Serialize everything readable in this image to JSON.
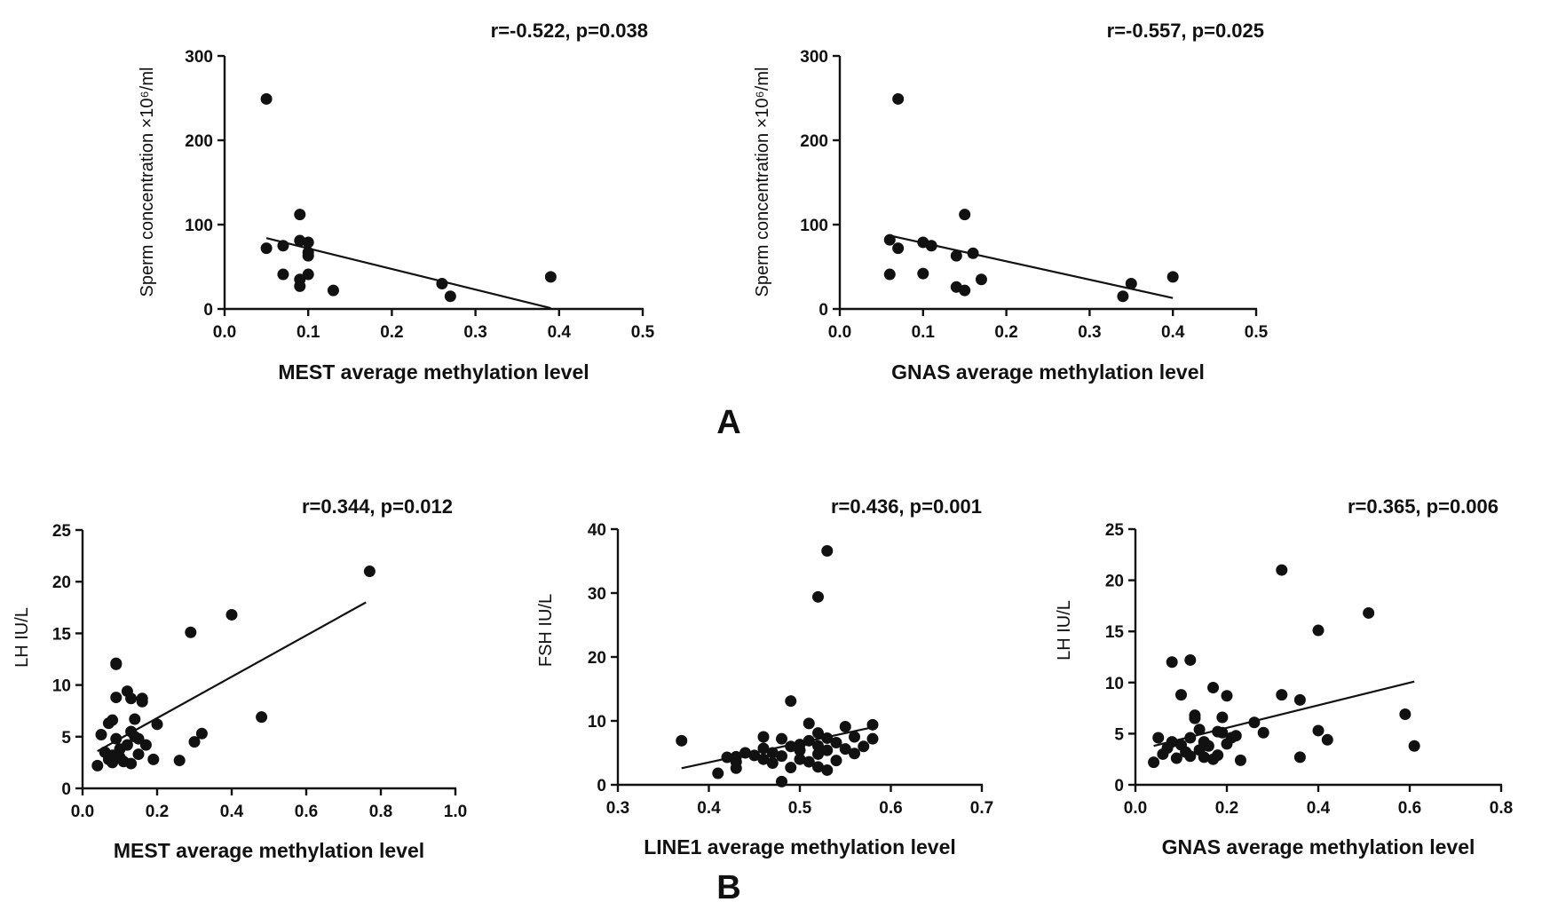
{
  "figure": {
    "panel_labels": [
      "A",
      "B"
    ]
  },
  "chart_data": [
    {
      "id": "A1",
      "type": "scatter",
      "title": "r=-0.522, p=0.038",
      "xlabel": "MEST average methylation level",
      "ylabel": "Sperm concentration  ×10⁶/ml",
      "xlim": [
        0.0,
        0.5
      ],
      "ylim": [
        0,
        300
      ],
      "xticks": [
        0.0,
        0.1,
        0.2,
        0.3,
        0.4,
        0.5
      ],
      "xtick_labels": [
        "0.0",
        "0.1",
        "0.2",
        "0.3",
        "0.4",
        "0.5"
      ],
      "yticks": [
        0,
        100,
        200,
        300
      ],
      "ytick_labels": [
        "0",
        "100",
        "200",
        "300"
      ],
      "points": [
        [
          0.05,
          249
        ],
        [
          0.05,
          72
        ],
        [
          0.07,
          75
        ],
        [
          0.07,
          41
        ],
        [
          0.09,
          112
        ],
        [
          0.09,
          81
        ],
        [
          0.09,
          35
        ],
        [
          0.09,
          27
        ],
        [
          0.1,
          79
        ],
        [
          0.1,
          67
        ],
        [
          0.1,
          63
        ],
        [
          0.1,
          41
        ],
        [
          0.13,
          22
        ],
        [
          0.26,
          30
        ],
        [
          0.27,
          15
        ],
        [
          0.39,
          38
        ]
      ],
      "fit_line": [
        [
          0.05,
          84
        ],
        [
          0.39,
          1
        ]
      ]
    },
    {
      "id": "A2",
      "type": "scatter",
      "title": "r=-0.557, p=0.025",
      "xlabel": "GNAS average methylation level",
      "ylabel": "Sperm concentration  ×10⁶/ml",
      "xlim": [
        0.0,
        0.5
      ],
      "ylim": [
        0,
        300
      ],
      "xticks": [
        0.0,
        0.1,
        0.2,
        0.3,
        0.4,
        0.5
      ],
      "xtick_labels": [
        "0.0",
        "0.1",
        "0.2",
        "0.3",
        "0.4",
        "0.5"
      ],
      "yticks": [
        0,
        100,
        200,
        300
      ],
      "ytick_labels": [
        "0",
        "100",
        "200",
        "300"
      ],
      "points": [
        [
          0.07,
          249
        ],
        [
          0.06,
          82
        ],
        [
          0.07,
          72
        ],
        [
          0.06,
          41
        ],
        [
          0.1,
          79
        ],
        [
          0.11,
          75
        ],
        [
          0.1,
          42
        ],
        [
          0.15,
          112
        ],
        [
          0.14,
          63
        ],
        [
          0.16,
          66
        ],
        [
          0.14,
          26
        ],
        [
          0.15,
          22
        ],
        [
          0.17,
          35
        ],
        [
          0.35,
          30
        ],
        [
          0.34,
          15
        ],
        [
          0.4,
          38
        ]
      ],
      "fit_line": [
        [
          0.06,
          87
        ],
        [
          0.4,
          13
        ]
      ]
    },
    {
      "id": "B1",
      "type": "scatter",
      "title": "r=0.344, p=0.012",
      "xlabel": "MEST average methylation level",
      "ylabel": "LH    IU/L",
      "xlim": [
        0.0,
        1.0
      ],
      "ylim": [
        0,
        25
      ],
      "xticks": [
        0.0,
        0.2,
        0.4,
        0.6,
        0.8,
        1.0
      ],
      "xtick_labels": [
        "0.0",
        "0.2",
        "0.4",
        "0.6",
        "0.8",
        "1.0"
      ],
      "yticks": [
        0,
        5,
        10,
        15,
        20,
        25
      ],
      "ytick_labels": [
        "0",
        "5",
        "10",
        "15",
        "20",
        "25"
      ],
      "points": [
        [
          0.04,
          2.2
        ],
        [
          0.05,
          5.2
        ],
        [
          0.06,
          3.5
        ],
        [
          0.07,
          6.3
        ],
        [
          0.07,
          2.8
        ],
        [
          0.08,
          6.6
        ],
        [
          0.08,
          3.2
        ],
        [
          0.08,
          2.5
        ],
        [
          0.09,
          12.1
        ],
        [
          0.09,
          12.0
        ],
        [
          0.09,
          8.8
        ],
        [
          0.09,
          4.8
        ],
        [
          0.1,
          3.8
        ],
        [
          0.1,
          3.0
        ],
        [
          0.11,
          2.6
        ],
        [
          0.12,
          4.2
        ],
        [
          0.12,
          9.4
        ],
        [
          0.13,
          5.5
        ],
        [
          0.13,
          2.4
        ],
        [
          0.13,
          8.7
        ],
        [
          0.14,
          6.7
        ],
        [
          0.14,
          5.0
        ],
        [
          0.15,
          3.3
        ],
        [
          0.15,
          4.8
        ],
        [
          0.16,
          8.7
        ],
        [
          0.16,
          8.4
        ],
        [
          0.17,
          4.2
        ],
        [
          0.19,
          2.8
        ],
        [
          0.2,
          6.2
        ],
        [
          0.26,
          2.7
        ],
        [
          0.29,
          15.1
        ],
        [
          0.3,
          4.5
        ],
        [
          0.32,
          5.3
        ],
        [
          0.4,
          16.8
        ],
        [
          0.48,
          6.9
        ],
        [
          0.77,
          21.0
        ]
      ],
      "fit_line": [
        [
          0.04,
          3.6
        ],
        [
          0.76,
          18.0
        ]
      ]
    },
    {
      "id": "B2",
      "type": "scatter",
      "title": "r=0.436, p=0.001",
      "xlabel": "LINE1 average methylation level",
      "ylabel": "FSH    IU/L",
      "xlim": [
        0.3,
        0.7
      ],
      "ylim": [
        0,
        40
      ],
      "xticks": [
        0.3,
        0.4,
        0.5,
        0.6,
        0.7
      ],
      "xtick_labels": [
        "0.3",
        "0.4",
        "0.5",
        "0.6",
        "0.7"
      ],
      "yticks": [
        0,
        10,
        20,
        30,
        40
      ],
      "ytick_labels": [
        "0",
        "10",
        "20",
        "30",
        "40"
      ],
      "points": [
        [
          0.37,
          6.9
        ],
        [
          0.41,
          1.8
        ],
        [
          0.42,
          4.3
        ],
        [
          0.43,
          4.4
        ],
        [
          0.43,
          3.6
        ],
        [
          0.43,
          2.6
        ],
        [
          0.44,
          5.0
        ],
        [
          0.45,
          4.6
        ],
        [
          0.46,
          7.5
        ],
        [
          0.46,
          5.7
        ],
        [
          0.46,
          4.0
        ],
        [
          0.47,
          3.4
        ],
        [
          0.47,
          5.0
        ],
        [
          0.48,
          7.2
        ],
        [
          0.48,
          4.5
        ],
        [
          0.48,
          0.5
        ],
        [
          0.49,
          13.1
        ],
        [
          0.49,
          6.0
        ],
        [
          0.49,
          2.7
        ],
        [
          0.5,
          5.4
        ],
        [
          0.5,
          6.3
        ],
        [
          0.5,
          4.0
        ],
        [
          0.51,
          9.6
        ],
        [
          0.51,
          6.9
        ],
        [
          0.51,
          3.6
        ],
        [
          0.52,
          29.4
        ],
        [
          0.52,
          8.1
        ],
        [
          0.52,
          6.1
        ],
        [
          0.52,
          4.8
        ],
        [
          0.52,
          2.8
        ],
        [
          0.53,
          36.6
        ],
        [
          0.53,
          7.3
        ],
        [
          0.53,
          5.4
        ],
        [
          0.53,
          2.3
        ],
        [
          0.54,
          6.6
        ],
        [
          0.54,
          3.8
        ],
        [
          0.55,
          9.1
        ],
        [
          0.55,
          5.6
        ],
        [
          0.56,
          7.5
        ],
        [
          0.56,
          4.9
        ],
        [
          0.57,
          6.0
        ],
        [
          0.58,
          9.4
        ],
        [
          0.58,
          7.2
        ]
      ],
      "fit_line": [
        [
          0.37,
          2.6
        ],
        [
          0.58,
          9.0
        ]
      ]
    },
    {
      "id": "B3",
      "type": "scatter",
      "title": "r=0.365, p=0.006",
      "xlabel": "GNAS average methylation level",
      "ylabel": "LH    IU/L",
      "xlim": [
        0.0,
        0.8
      ],
      "ylim": [
        0,
        25
      ],
      "xticks": [
        0.0,
        0.2,
        0.4,
        0.6,
        0.8
      ],
      "xtick_labels": [
        "0.0",
        "0.2",
        "0.4",
        "0.6",
        "0.8"
      ],
      "yticks": [
        0,
        5,
        10,
        15,
        20,
        25
      ],
      "ytick_labels": [
        "0",
        "5",
        "10",
        "15",
        "20",
        "25"
      ],
      "points": [
        [
          0.04,
          2.2
        ],
        [
          0.05,
          4.6
        ],
        [
          0.06,
          3.0
        ],
        [
          0.07,
          3.6
        ],
        [
          0.08,
          4.2
        ],
        [
          0.08,
          12.0
        ],
        [
          0.09,
          2.6
        ],
        [
          0.1,
          8.8
        ],
        [
          0.1,
          3.9
        ],
        [
          0.11,
          3.2
        ],
        [
          0.12,
          12.2
        ],
        [
          0.12,
          4.6
        ],
        [
          0.12,
          2.8
        ],
        [
          0.13,
          6.5
        ],
        [
          0.13,
          6.8
        ],
        [
          0.14,
          5.4
        ],
        [
          0.14,
          3.4
        ],
        [
          0.15,
          4.2
        ],
        [
          0.15,
          2.7
        ],
        [
          0.16,
          3.8
        ],
        [
          0.17,
          9.5
        ],
        [
          0.17,
          2.5
        ],
        [
          0.18,
          5.2
        ],
        [
          0.18,
          2.9
        ],
        [
          0.19,
          6.6
        ],
        [
          0.19,
          5.1
        ],
        [
          0.2,
          8.7
        ],
        [
          0.2,
          4.0
        ],
        [
          0.21,
          4.6
        ],
        [
          0.22,
          4.8
        ],
        [
          0.23,
          2.4
        ],
        [
          0.26,
          6.1
        ],
        [
          0.28,
          5.1
        ],
        [
          0.32,
          21.0
        ],
        [
          0.32,
          8.8
        ],
        [
          0.36,
          8.3
        ],
        [
          0.36,
          2.7
        ],
        [
          0.4,
          15.1
        ],
        [
          0.4,
          5.3
        ],
        [
          0.42,
          4.4
        ],
        [
          0.51,
          16.8
        ],
        [
          0.59,
          6.9
        ],
        [
          0.61,
          3.8
        ]
      ],
      "fit_line": [
        [
          0.04,
          3.8
        ],
        [
          0.61,
          10.1
        ]
      ]
    }
  ]
}
